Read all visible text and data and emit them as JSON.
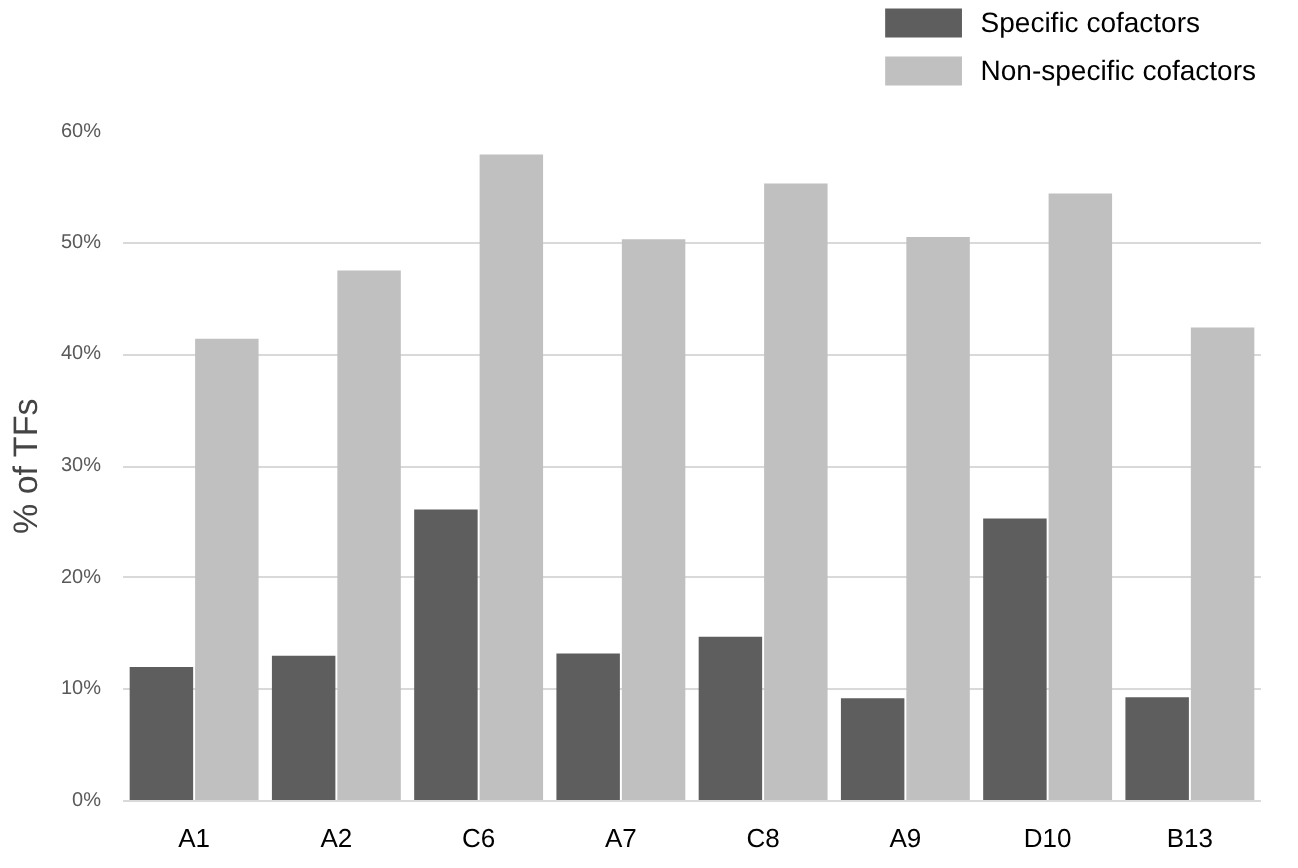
{
  "chart_data": {
    "type": "bar",
    "ylabel": "% of TFs",
    "categories": [
      "A1",
      "A2",
      "C6",
      "A7",
      "C8",
      "A9",
      "D10",
      "B13"
    ],
    "series": [
      {
        "name": "Specific cofactors",
        "color": "#5e5e5e",
        "values": [
          12.0,
          13.0,
          26.1,
          13.2,
          14.7,
          9.2,
          25.3,
          9.3
        ]
      },
      {
        "name": "Non-specific cofactors",
        "color": "#c0c0c0",
        "values": [
          41.4,
          47.5,
          57.9,
          50.3,
          55.3,
          50.5,
          54.4,
          42.4
        ]
      }
    ],
    "ylim": [
      0,
      60
    ],
    "yticks": [
      {
        "value": 0,
        "label": "0%"
      },
      {
        "value": 10,
        "label": "10%"
      },
      {
        "value": 20,
        "label": "20%"
      },
      {
        "value": 30,
        "label": "30%"
      },
      {
        "value": 40,
        "label": "40%"
      },
      {
        "value": 50,
        "label": "50%"
      },
      {
        "value": 60,
        "label": "60%"
      }
    ],
    "grid": "y",
    "legend": "top right"
  }
}
